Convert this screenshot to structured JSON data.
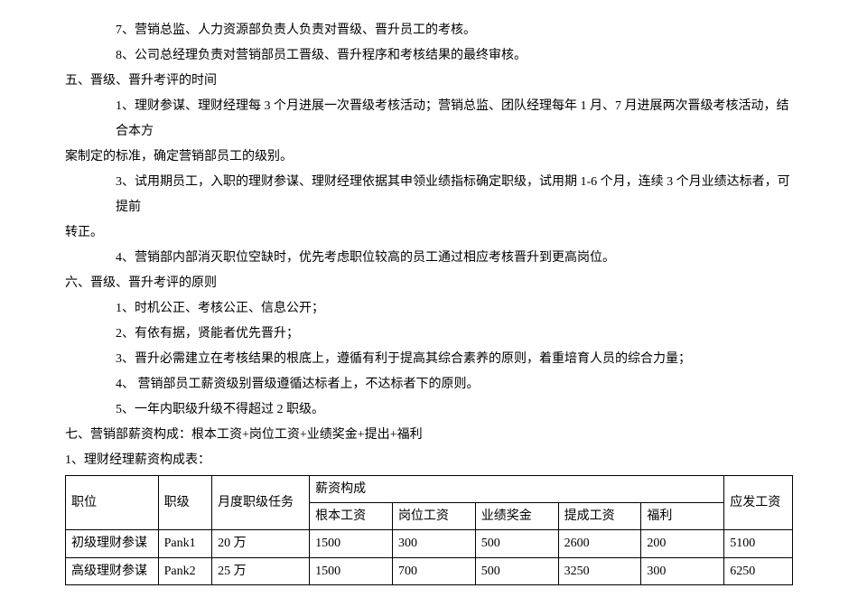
{
  "paragraphs": [
    {
      "cls": "indent-1",
      "text": "7、营销总监、人力资源部负责人负责对晋级、晋升员工的考核。"
    },
    {
      "cls": "indent-1",
      "text": "8、公司总经理负责对营销部员工晋级、晋升程序和考核结果的最终审核。"
    },
    {
      "cls": "indent-0",
      "text": "五、晋级、晋升考评的时间"
    },
    {
      "cls": "indent-1",
      "text": "1、理财参谋、理财经理每 3 个月进展一次晋级考核活动；营销总监、团队经理每年 1 月、7 月进展两次晋级考核活动，结合本方"
    },
    {
      "cls": "indent-0",
      "text": "案制定的标准，确定营销部员工的级别。"
    },
    {
      "cls": "indent-1",
      "text": "3、试用期员工，入职的理财参谋、理财经理依据其申领业绩指标确定职级，试用期 1-6 个月，连续 3 个月业绩达标者，可提前"
    },
    {
      "cls": "indent-0",
      "text": "转正。"
    },
    {
      "cls": "indent-1",
      "text": "4、营销部内部消灭职位空缺时，优先考虑职位较高的员工通过相应考核晋升到更高岗位。"
    },
    {
      "cls": "indent-0",
      "text": "六、晋级、晋升考评的原则"
    },
    {
      "cls": "indent-1",
      "text": "1、时机公正、考核公正、信息公开；"
    },
    {
      "cls": "indent-1",
      "text": "2、有依有据，贤能者优先晋升；"
    },
    {
      "cls": "indent-1",
      "text": "3、晋升必需建立在考核结果的根底上，遵循有利于提高其综合素养的原则，着重培育人员的综合力量；"
    },
    {
      "cls": "indent-1",
      "text": "4、 营销部员工薪资级别晋级遵循达标者上，不达标者下的原则。"
    },
    {
      "cls": "indent-1",
      "text": "5、一年内职级升级不得超过 2 职级。"
    },
    {
      "cls": "indent-0",
      "text": "七、营销部薪资构成：根本工资+岗位工资+业绩奖金+提出+福利"
    },
    {
      "cls": "indent-0",
      "text": "1、理财经理薪资构成表："
    }
  ],
  "table": {
    "header_row1": {
      "position": "职位",
      "rank": "职级",
      "task": "月度职级任务",
      "salary_group": "薪资构成",
      "pay": "应发工资"
    },
    "header_row2": {
      "base": "根本工资",
      "post": "岗位工资",
      "bonus": "业绩奖金",
      "commission": "提成工资",
      "welfare": "福利"
    },
    "rows": [
      {
        "position": "初级理财参谋",
        "rank": "Pank1",
        "task": "20 万",
        "base": "1500",
        "post": "300",
        "bonus": "500",
        "commission": "2600",
        "welfare": "200",
        "pay": "5100"
      },
      {
        "position": "高级理财参谋",
        "rank": "Pank2",
        "task": "25 万",
        "base": "1500",
        "post": "700",
        "bonus": "500",
        "commission": "3250",
        "welfare": "300",
        "pay": "6250"
      }
    ]
  }
}
